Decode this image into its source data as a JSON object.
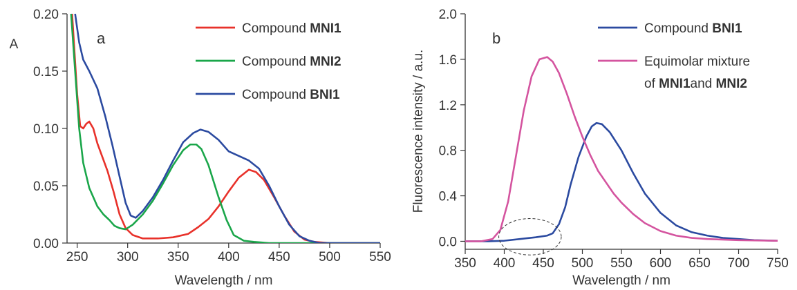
{
  "chart_data": [
    {
      "type": "line",
      "panel_label": "a",
      "ylabel": "A",
      "xlabel": "Wavelength / nm",
      "xlim": [
        240,
        550
      ],
      "ylim": [
        0,
        0.2
      ],
      "xticks": [
        "250",
        "300",
        "350",
        "400",
        "450",
        "500",
        "550"
      ],
      "yticks": [
        "0.00",
        "0.05",
        "0.10",
        "0.15",
        "0.20"
      ],
      "legend": {
        "placement": "top-right"
      },
      "series": [
        {
          "name_prefix": "Compound ",
          "name_bold": "MNI1",
          "color": "#e8312a",
          "points": [
            [
              245,
              0.2
            ],
            [
              250,
              0.13
            ],
            [
              253,
              0.102
            ],
            [
              256,
              0.1
            ],
            [
              259,
              0.104
            ],
            [
              262,
              0.106
            ],
            [
              266,
              0.1
            ],
            [
              270,
              0.087
            ],
            [
              275,
              0.075
            ],
            [
              280,
              0.063
            ],
            [
              286,
              0.045
            ],
            [
              292,
              0.025
            ],
            [
              298,
              0.013
            ],
            [
              305,
              0.007
            ],
            [
              315,
              0.004
            ],
            [
              330,
              0.004
            ],
            [
              345,
              0.005
            ],
            [
              360,
              0.008
            ],
            [
              370,
              0.014
            ],
            [
              380,
              0.021
            ],
            [
              390,
              0.032
            ],
            [
              400,
              0.045
            ],
            [
              410,
              0.057
            ],
            [
              420,
              0.064
            ],
            [
              427,
              0.062
            ],
            [
              435,
              0.055
            ],
            [
              445,
              0.04
            ],
            [
              455,
              0.024
            ],
            [
              465,
              0.01
            ],
            [
              475,
              0.003
            ],
            [
              485,
              0.001
            ],
            [
              500,
              0.0
            ],
            [
              550,
              0.0
            ]
          ]
        },
        {
          "name_prefix": "Compound ",
          "name_bold": "MNI2",
          "color": "#1aa64a",
          "points": [
            [
              244,
              0.2
            ],
            [
              248,
              0.15
            ],
            [
              252,
              0.1
            ],
            [
              256,
              0.07
            ],
            [
              262,
              0.048
            ],
            [
              270,
              0.032
            ],
            [
              276,
              0.025
            ],
            [
              282,
              0.02
            ],
            [
              287,
              0.015
            ],
            [
              292,
              0.013
            ],
            [
              298,
              0.012
            ],
            [
              305,
              0.016
            ],
            [
              315,
              0.025
            ],
            [
              325,
              0.037
            ],
            [
              335,
              0.052
            ],
            [
              345,
              0.068
            ],
            [
              355,
              0.081
            ],
            [
              362,
              0.086
            ],
            [
              368,
              0.086
            ],
            [
              373,
              0.082
            ],
            [
              380,
              0.068
            ],
            [
              390,
              0.04
            ],
            [
              398,
              0.02
            ],
            [
              405,
              0.007
            ],
            [
              415,
              0.002
            ],
            [
              425,
              0.001
            ],
            [
              440,
              0.0
            ],
            [
              550,
              0.0
            ]
          ]
        },
        {
          "name_prefix": "Compound ",
          "name_bold": "BNI1",
          "color": "#2b4aa0",
          "points": [
            [
              248,
              0.2
            ],
            [
              252,
              0.175
            ],
            [
              256,
              0.16
            ],
            [
              262,
              0.15
            ],
            [
              270,
              0.135
            ],
            [
              278,
              0.11
            ],
            [
              285,
              0.085
            ],
            [
              292,
              0.058
            ],
            [
              298,
              0.035
            ],
            [
              303,
              0.024
            ],
            [
              308,
              0.022
            ],
            [
              315,
              0.028
            ],
            [
              325,
              0.04
            ],
            [
              335,
              0.055
            ],
            [
              345,
              0.072
            ],
            [
              355,
              0.088
            ],
            [
              365,
              0.096
            ],
            [
              372,
              0.099
            ],
            [
              380,
              0.097
            ],
            [
              390,
              0.09
            ],
            [
              400,
              0.08
            ],
            [
              410,
              0.076
            ],
            [
              420,
              0.072
            ],
            [
              430,
              0.065
            ],
            [
              440,
              0.05
            ],
            [
              450,
              0.032
            ],
            [
              460,
              0.016
            ],
            [
              470,
              0.006
            ],
            [
              480,
              0.002
            ],
            [
              490,
              0.0
            ],
            [
              550,
              0.0
            ]
          ]
        }
      ]
    },
    {
      "type": "line",
      "panel_label": "b",
      "ylabel": "Fluorescence intensity / a.u.",
      "xlabel": "Wavelength / nm",
      "xlim": [
        350,
        750
      ],
      "ylim": [
        -0.07,
        2.0
      ],
      "xticks": [
        "350",
        "400",
        "450",
        "500",
        "550",
        "600",
        "650",
        "700",
        "750"
      ],
      "yticks": [
        "0.0",
        "0.4",
        "0.8",
        "1.2",
        "1.6",
        "2.0"
      ],
      "legend": {
        "placement": "top-right"
      },
      "annotation": {
        "type": "dashed-ellipse",
        "center": [
          433,
          0.04
        ],
        "rx": 40,
        "ry": 0.16
      },
      "series": [
        {
          "name_lines": [
            {
              "prefix": "Compound ",
              "bold": "BNI1",
              "suffix": ""
            }
          ],
          "color": "#2b4aa0",
          "points": [
            [
              350,
              0.0
            ],
            [
              380,
              0.0
            ],
            [
              400,
              0.005
            ],
            [
              420,
              0.02
            ],
            [
              440,
              0.035
            ],
            [
              455,
              0.05
            ],
            [
              462,
              0.07
            ],
            [
              470,
              0.15
            ],
            [
              478,
              0.3
            ],
            [
              485,
              0.5
            ],
            [
              495,
              0.74
            ],
            [
              505,
              0.92
            ],
            [
              512,
              1.01
            ],
            [
              518,
              1.04
            ],
            [
              525,
              1.03
            ],
            [
              535,
              0.96
            ],
            [
              550,
              0.8
            ],
            [
              565,
              0.6
            ],
            [
              580,
              0.42
            ],
            [
              600,
              0.25
            ],
            [
              620,
              0.14
            ],
            [
              640,
              0.08
            ],
            [
              660,
              0.05
            ],
            [
              680,
              0.03
            ],
            [
              700,
              0.02
            ],
            [
              720,
              0.01
            ],
            [
              750,
              0.005
            ]
          ]
        },
        {
          "name_lines": [
            {
              "prefix": "Equimolar mixture",
              "bold": "",
              "suffix": ""
            },
            {
              "prefix": "of ",
              "bold": "MNI1",
              "suffix": "and ",
              "bold2": "MNI2"
            }
          ],
          "color": "#d4549f",
          "points": [
            [
              350,
              0.0
            ],
            [
              370,
              0.0
            ],
            [
              385,
              0.02
            ],
            [
              395,
              0.1
            ],
            [
              405,
              0.35
            ],
            [
              415,
              0.75
            ],
            [
              425,
              1.15
            ],
            [
              435,
              1.45
            ],
            [
              445,
              1.6
            ],
            [
              455,
              1.62
            ],
            [
              462,
              1.58
            ],
            [
              470,
              1.48
            ],
            [
              480,
              1.3
            ],
            [
              490,
              1.1
            ],
            [
              500,
              0.92
            ],
            [
              510,
              0.76
            ],
            [
              520,
              0.62
            ],
            [
              530,
              0.52
            ],
            [
              540,
              0.42
            ],
            [
              550,
              0.34
            ],
            [
              565,
              0.24
            ],
            [
              580,
              0.16
            ],
            [
              600,
              0.09
            ],
            [
              620,
              0.05
            ],
            [
              640,
              0.03
            ],
            [
              660,
              0.02
            ],
            [
              700,
              0.01
            ],
            [
              750,
              0.005
            ]
          ]
        }
      ]
    }
  ]
}
